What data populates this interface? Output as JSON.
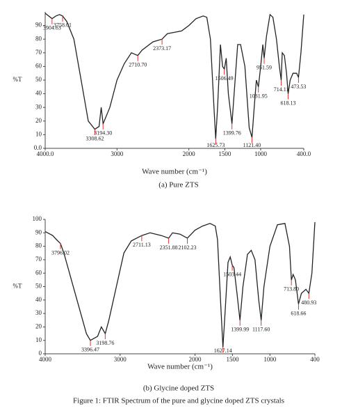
{
  "chart_data": [
    {
      "type": "line",
      "ylabel": "%T",
      "xlabel": "Wave number (cm⁻¹)",
      "caption": "(a) Pure ZTS",
      "color": "#222222",
      "annotation_color": "#e03030",
      "xlim": [
        4000,
        400
      ],
      "ylim": [
        0,
        100
      ],
      "xticks": [
        {
          "value": 4000,
          "label": "4000.0"
        },
        3000,
        2000,
        1500,
        1000,
        {
          "value": 400,
          "label": "400.0"
        }
      ],
      "yticks": [
        {
          "value": 0,
          "label": "0.0"
        },
        10,
        20,
        30,
        40,
        50,
        60,
        70,
        80,
        90
      ],
      "x": [
        4000,
        3904.63,
        3850,
        3800,
        3758.01,
        3700,
        3600,
        3500,
        3400,
        3308.62,
        3250,
        3220,
        3194.3,
        3100,
        3000,
        2900,
        2800,
        2710.7,
        2650,
        2500,
        2373.17,
        2300,
        2200,
        2100,
        2000,
        1900,
        1800,
        1750,
        1700,
        1650,
        1625.73,
        1600,
        1560,
        1530,
        1506.49,
        1480,
        1450,
        1399.76,
        1370,
        1320,
        1280,
        1220,
        1160,
        1121.4,
        1090,
        1060,
        1031.95,
        1000,
        970,
        951.59,
        920,
        870,
        830,
        780,
        740,
        714.11,
        700,
        670,
        640,
        618.13,
        590,
        550,
        500,
        473.53,
        440,
        400
      ],
      "values": [
        99,
        95,
        97,
        98,
        97,
        93,
        80,
        50,
        20,
        14,
        16,
        30,
        18,
        30,
        50,
        62,
        70,
        68,
        72,
        78,
        80,
        84,
        85,
        86,
        90,
        95,
        97,
        96,
        80,
        30,
        7,
        30,
        76,
        60,
        58,
        66,
        40,
        18,
        40,
        76,
        76,
        60,
        15,
        8,
        30,
        50,
        45,
        60,
        76,
        66,
        82,
        98,
        96,
        80,
        60,
        50,
        70,
        68,
        55,
        40,
        50,
        55,
        55,
        52,
        70,
        98
      ],
      "annotations": [
        {
          "x": 3904.63,
          "label": "3904.63"
        },
        {
          "x": 3758.01,
          "label": "3758.01"
        },
        {
          "x": 3308.62,
          "label": "3308.62"
        },
        {
          "x": 3194.3,
          "label": "3194.30"
        },
        {
          "x": 2710.7,
          "label": "2710.70"
        },
        {
          "x": 2373.17,
          "label": "2373.17"
        },
        {
          "x": 1625.73,
          "label": "1625.73"
        },
        {
          "x": 1506.49,
          "label": "1506.49"
        },
        {
          "x": 1399.76,
          "label": "1399.76"
        },
        {
          "x": 1121.4,
          "label": "1121.40"
        },
        {
          "x": 1031.95,
          "label": "1031.95"
        },
        {
          "x": 951.59,
          "label": "951.59"
        },
        {
          "x": 714.11,
          "label": "714.11"
        },
        {
          "x": 618.13,
          "label": "618.13"
        },
        {
          "x": 473.53,
          "label": "473.53"
        }
      ]
    },
    {
      "type": "line",
      "ylabel": "%T",
      "xlabel": "Wave number (cm⁻¹)",
      "caption": "(b) Glycine doped ZTS",
      "color": "#222222",
      "annotation_color": "#e03030",
      "xlim": [
        4000,
        400
      ],
      "ylim": [
        0,
        100
      ],
      "xticks": [
        4000,
        3000,
        2000,
        1500,
        1000,
        400
      ],
      "yticks": [
        0,
        10,
        20,
        30,
        40,
        50,
        60,
        70,
        80,
        90,
        100
      ],
      "x": [
        4000,
        3900,
        3850,
        3796.02,
        3750,
        3650,
        3550,
        3450,
        3396.47,
        3300,
        3250,
        3198.76,
        3150,
        3050,
        2950,
        2850,
        2711.13,
        2600,
        2450,
        2351.88,
        2300,
        2200,
        2102.23,
        2000,
        1900,
        1800,
        1730,
        1700,
        1660,
        1627.14,
        1600,
        1560,
        1530,
        1503.44,
        1480,
        1440,
        1399.99,
        1360,
        1300,
        1250,
        1200,
        1150,
        1117.6,
        1080,
        1000,
        900,
        800,
        740,
        713.8,
        690,
        660,
        618.66,
        580,
        520,
        480.93,
        440,
        400
      ],
      "values": [
        91,
        88,
        85,
        82,
        75,
        55,
        35,
        15,
        10,
        13,
        20,
        15,
        25,
        50,
        75,
        84,
        88,
        90,
        88,
        86,
        90,
        89,
        86,
        92,
        95,
        97,
        95,
        85,
        40,
        5,
        30,
        68,
        72,
        66,
        64,
        45,
        25,
        50,
        74,
        77,
        70,
        40,
        25,
        50,
        80,
        96,
        97,
        80,
        55,
        59,
        55,
        37,
        45,
        48,
        45,
        60,
        98
      ],
      "annotations": [
        {
          "x": 3796.02,
          "label": "3796.02"
        },
        {
          "x": 3396.47,
          "label": "3396.47"
        },
        {
          "x": 3198.76,
          "label": "3198.76"
        },
        {
          "x": 2711.13,
          "label": "2711.13"
        },
        {
          "x": 2351.88,
          "label": "2351.88"
        },
        {
          "x": 2102.23,
          "label": "2102.23"
        },
        {
          "x": 1627.14,
          "label": "1627.14"
        },
        {
          "x": 1503.44,
          "label": "1503.44"
        },
        {
          "x": 1399.99,
          "label": "1399.99"
        },
        {
          "x": 1117.6,
          "label": "1117.60"
        },
        {
          "x": 713.8,
          "label": "713.80"
        },
        {
          "x": 618.66,
          "label": "618.66"
        },
        {
          "x": 480.93,
          "label": "480.93"
        }
      ]
    }
  ],
  "figure_caption": "Figure 1: FTIR Spectrum of the pure and glycine doped ZTS crystals"
}
